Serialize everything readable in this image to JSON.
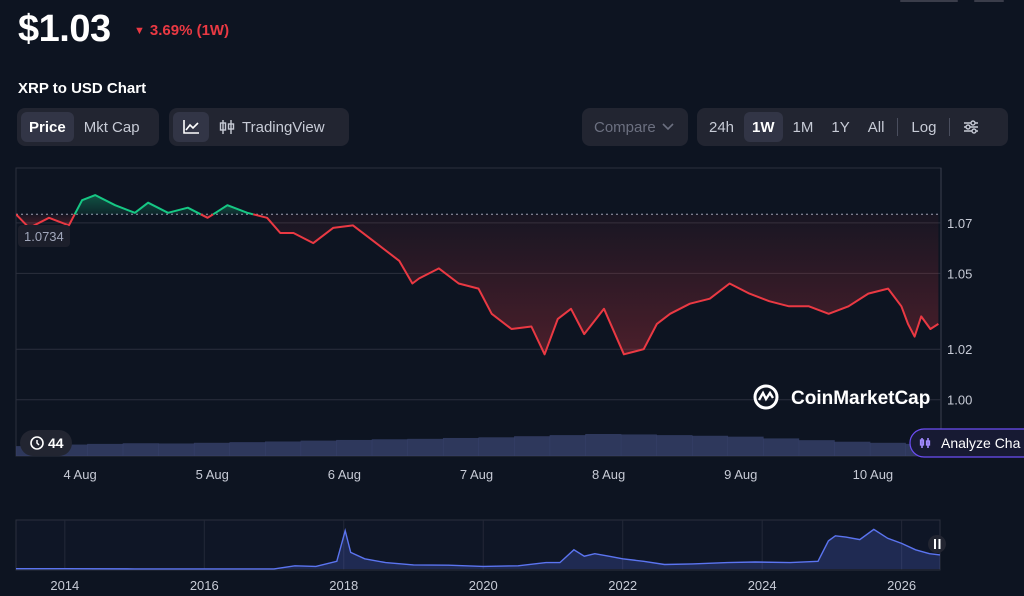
{
  "header": {
    "price": "$1.03",
    "change": "3.69% (1W)",
    "change_color": "#ea3943",
    "subtitle": "XRP to USD Chart"
  },
  "toolbar": {
    "type_tabs": [
      "Price",
      "Mkt Cap"
    ],
    "type_active": "Price",
    "line_icon": "line-chart-icon",
    "candle_icon": "candlestick-icon",
    "tradingview_label": "TradingView",
    "compare_label": "Compare",
    "ranges": [
      "24h",
      "1W",
      "1M",
      "1Y",
      "All"
    ],
    "range_active": "1W",
    "log_label": "Log",
    "settings_icon": "sliders-icon"
  },
  "overlays": {
    "reference_label": "1.0734",
    "volume_badge": "44",
    "history_icon": "history-icon",
    "analyze_label": "Analyze Cha",
    "watermark": "CoinMarketCap",
    "pause_icon": "pause-icon"
  },
  "colors": {
    "up": "#16c784",
    "down": "#ea3943",
    "volume": "#3a4470",
    "mini_line": "#5b74f0",
    "analyze_border": "#6c4df5"
  },
  "chart_data": [
    {
      "type": "line",
      "title": "",
      "reference_value": 1.0734,
      "y_ticks": [
        "1.07",
        "1.05",
        "1.02",
        "1.00"
      ],
      "y_tick_values": [
        1.07,
        1.05,
        1.02,
        1.0
      ],
      "ylim": [
        0.99,
        1.085
      ],
      "x_ticks": [
        "4 Aug",
        "5 Aug",
        "6 Aug",
        "7 Aug",
        "8 Aug",
        "9 Aug",
        "10 Aug"
      ],
      "x_tick_values": [
        0.5,
        1.5,
        2.5,
        3.5,
        4.5,
        5.5,
        6.5
      ],
      "xlim": [
        0,
        7.0
      ],
      "x": [
        0,
        0.1,
        0.25,
        0.4,
        0.5,
        0.6,
        0.75,
        0.9,
        1.0,
        1.15,
        1.3,
        1.45,
        1.6,
        1.75,
        1.9,
        2.0,
        2.1,
        2.25,
        2.4,
        2.55,
        2.7,
        2.9,
        3.0,
        3.05,
        3.2,
        3.35,
        3.5,
        3.6,
        3.75,
        3.9,
        4.0,
        4.1,
        4.2,
        4.3,
        4.45,
        4.6,
        4.75,
        4.85,
        4.95,
        5.1,
        5.25,
        5.4,
        5.55,
        5.7,
        5.85,
        6.0,
        6.15,
        6.3,
        6.45,
        6.6,
        6.7,
        6.75,
        6.8,
        6.85,
        6.92,
        6.98
      ],
      "values": [
        1.0734,
        1.068,
        1.072,
        1.069,
        1.079,
        1.081,
        1.077,
        1.074,
        1.078,
        1.074,
        1.076,
        1.072,
        1.077,
        1.074,
        1.072,
        1.066,
        1.066,
        1.062,
        1.068,
        1.069,
        1.063,
        1.055,
        1.046,
        1.048,
        1.052,
        1.046,
        1.044,
        1.034,
        1.028,
        1.029,
        1.018,
        1.032,
        1.036,
        1.026,
        1.036,
        1.018,
        1.02,
        1.03,
        1.034,
        1.038,
        1.04,
        1.046,
        1.042,
        1.039,
        1.037,
        1.037,
        1.034,
        1.037,
        1.042,
        1.044,
        1.037,
        1.03,
        1.025,
        1.033,
        1.028,
        1.03
      ],
      "volume_label": "44",
      "volume_values": [
        0.45,
        0.52,
        0.55,
        0.58,
        0.57,
        0.6,
        0.63,
        0.66,
        0.7,
        0.73,
        0.76,
        0.78,
        0.82,
        0.85,
        0.9,
        0.95,
        1.0,
        0.98,
        0.95,
        0.92,
        0.88,
        0.8,
        0.72,
        0.65,
        0.6,
        0.55
      ]
    },
    {
      "type": "line",
      "title": "",
      "x_ticks": [
        "2014",
        "2016",
        "2018",
        "2020",
        "2022",
        "2024",
        "2026"
      ],
      "x_tick_values": [
        2014,
        2016,
        2018,
        2020,
        2022,
        2024,
        2026
      ],
      "xlim": [
        2013.3,
        2026.55
      ],
      "ylim": [
        0,
        3.6
      ],
      "x": [
        2013.3,
        2014.0,
        2015.0,
        2016.0,
        2017.0,
        2017.3,
        2017.6,
        2017.9,
        2018.02,
        2018.1,
        2018.3,
        2018.6,
        2019.0,
        2019.5,
        2020.0,
        2020.5,
        2020.9,
        2021.1,
        2021.3,
        2021.45,
        2021.6,
        2021.8,
        2022.0,
        2022.3,
        2022.6,
        2023.0,
        2023.5,
        2023.9,
        2024.4,
        2024.8,
        2024.95,
        2025.05,
        2025.2,
        2025.4,
        2025.6,
        2025.8,
        2026.0,
        2026.2,
        2026.4,
        2026.55
      ],
      "values": [
        0.02,
        0.02,
        0.01,
        0.01,
        0.01,
        0.25,
        0.2,
        0.6,
        3.0,
        1.3,
        0.8,
        0.5,
        0.32,
        0.3,
        0.2,
        0.25,
        0.5,
        0.5,
        1.5,
        1.0,
        1.2,
        1.0,
        0.8,
        0.6,
        0.35,
        0.4,
        0.5,
        0.55,
        0.5,
        0.6,
        2.2,
        2.6,
        2.5,
        2.3,
        3.1,
        2.4,
        2.0,
        1.5,
        1.2,
        1.1
      ]
    }
  ]
}
